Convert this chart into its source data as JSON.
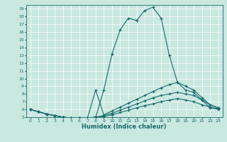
{
  "xlabel": "Humidex (Indice chaleur)",
  "ylabel": "",
  "background_color": "#c8e8e0",
  "line_color": "#1a6b6b",
  "xlim": [
    -0.5,
    23.5
  ],
  "ylim": [
    5.0,
    19.5
  ],
  "yticks": [
    5,
    6,
    7,
    8,
    9,
    10,
    11,
    12,
    13,
    14,
    15,
    16,
    17,
    18,
    19
  ],
  "xticks": [
    0,
    1,
    2,
    3,
    4,
    5,
    6,
    7,
    8,
    9,
    10,
    11,
    12,
    13,
    14,
    15,
    16,
    17,
    18,
    19,
    20,
    21,
    22,
    23
  ],
  "series": [
    {
      "x": [
        0,
        1,
        2,
        3,
        4,
        5,
        6,
        7,
        8,
        9,
        10,
        11,
        12,
        13,
        14,
        15,
        16,
        17,
        18,
        19,
        20,
        21,
        22,
        23
      ],
      "y": [
        6.0,
        5.7,
        5.4,
        5.2,
        5.0,
        4.9,
        4.9,
        4.9,
        5.0,
        8.5,
        13.2,
        16.3,
        17.8,
        17.5,
        18.8,
        19.2,
        17.8,
        13.0,
        9.5,
        8.5,
        8.2,
        7.2,
        6.2,
        6.0
      ]
    },
    {
      "x": [
        0,
        1,
        2,
        3,
        4,
        5,
        6,
        7,
        8,
        9,
        10,
        11,
        12,
        13,
        14,
        15,
        16,
        17,
        18,
        19,
        20,
        21,
        22,
        23
      ],
      "y": [
        6.0,
        5.7,
        5.4,
        5.2,
        5.0,
        4.9,
        4.9,
        4.9,
        8.5,
        5.3,
        5.8,
        6.3,
        6.8,
        7.3,
        7.8,
        8.3,
        8.8,
        9.2,
        9.5,
        9.0,
        8.5,
        7.5,
        6.6,
        6.2
      ]
    },
    {
      "x": [
        0,
        1,
        2,
        3,
        4,
        5,
        6,
        7,
        8,
        9,
        10,
        11,
        12,
        13,
        14,
        15,
        16,
        17,
        18,
        19,
        20,
        21,
        22,
        23
      ],
      "y": [
        6.0,
        5.7,
        5.4,
        5.2,
        5.0,
        4.9,
        4.9,
        4.9,
        5.0,
        5.2,
        5.5,
        5.9,
        6.3,
        6.7,
        7.1,
        7.5,
        7.8,
        8.0,
        8.2,
        8.0,
        7.8,
        7.2,
        6.6,
        6.2
      ]
    },
    {
      "x": [
        0,
        1,
        2,
        3,
        4,
        5,
        6,
        7,
        8,
        9,
        10,
        11,
        12,
        13,
        14,
        15,
        16,
        17,
        18,
        19,
        20,
        21,
        22,
        23
      ],
      "y": [
        6.0,
        5.7,
        5.4,
        5.2,
        5.0,
        4.9,
        4.9,
        4.9,
        5.0,
        5.1,
        5.3,
        5.6,
        5.9,
        6.2,
        6.5,
        6.7,
        7.0,
        7.2,
        7.4,
        7.2,
        7.0,
        6.6,
        6.3,
        6.1
      ]
    }
  ]
}
